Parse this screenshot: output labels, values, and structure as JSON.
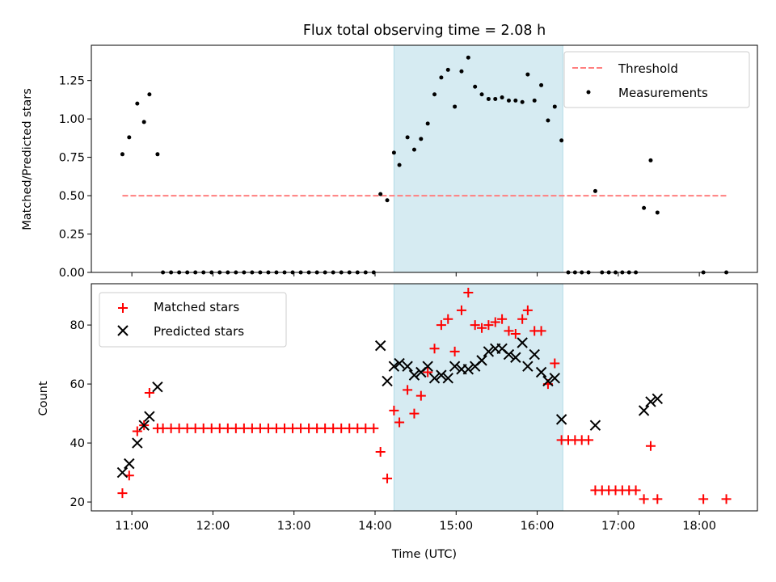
{
  "title": "Flux total observing time = 2.08 h",
  "colors": {
    "threshold": "#ff7f7f",
    "measurement": "#000000",
    "matched": "#ff0000",
    "predicted": "#000000",
    "highlight": "#add8e6"
  },
  "chart_data": [
    {
      "type": "scatter",
      "panel": "top",
      "ylabel": "Matched/Predicted stars",
      "xlabel": "",
      "xlim": [
        "10:30",
        "18:43"
      ],
      "ylim": [
        0,
        1.48
      ],
      "yticks": [
        "0.00",
        "0.25",
        "0.50",
        "0.75",
        "1.00",
        "1.25"
      ],
      "highlight_span": [
        "14:14",
        "16:19"
      ],
      "legend_position": "upper right",
      "series": [
        {
          "name": "Threshold",
          "kind": "dashed-line",
          "x": [
            "10:53",
            "18:20"
          ],
          "y": [
            0.5,
            0.5
          ]
        },
        {
          "name": "Measurements",
          "kind": "point",
          "x": [
            "10:53",
            "10:58",
            "11:04",
            "11:09",
            "11:13",
            "11:19",
            "11:23",
            "11:29",
            "11:35",
            "11:41",
            "11:47",
            "11:53",
            "11:59",
            "12:05",
            "12:11",
            "12:17",
            "12:23",
            "12:29",
            "12:35",
            "12:41",
            "12:47",
            "12:53",
            "12:59",
            "13:05",
            "13:11",
            "13:17",
            "13:23",
            "13:29",
            "13:35",
            "13:41",
            "13:47",
            "13:53",
            "13:59",
            "14:04",
            "14:09",
            "14:14",
            "14:18",
            "14:24",
            "14:29",
            "14:34",
            "14:39",
            "14:44",
            "14:49",
            "14:54",
            "14:59",
            "15:04",
            "15:09",
            "15:14",
            "15:19",
            "15:24",
            "15:29",
            "15:34",
            "15:39",
            "15:44",
            "15:49",
            "15:53",
            "15:58",
            "16:03",
            "16:08",
            "16:13",
            "16:18",
            "16:23",
            "16:28",
            "16:33",
            "16:38",
            "16:43",
            "16:48",
            "16:53",
            "16:58",
            "17:03",
            "17:08",
            "17:13",
            "17:19",
            "17:24",
            "17:29",
            "18:03",
            "18:20"
          ],
          "y": [
            0.77,
            0.88,
            1.1,
            0.98,
            1.16,
            0.77,
            0.0,
            0.0,
            0.0,
            0.0,
            0.0,
            0.0,
            0.0,
            0.0,
            0.0,
            0.0,
            0.0,
            0.0,
            0.0,
            0.0,
            0.0,
            0.0,
            0.0,
            0.0,
            0.0,
            0.0,
            0.0,
            0.0,
            0.0,
            0.0,
            0.0,
            0.0,
            0.0,
            0.51,
            0.47,
            0.78,
            0.7,
            0.88,
            0.8,
            0.87,
            0.97,
            1.16,
            1.27,
            1.32,
            1.08,
            1.31,
            1.4,
            1.21,
            1.16,
            1.13,
            1.13,
            1.14,
            1.12,
            1.12,
            1.11,
            1.29,
            1.12,
            1.22,
            0.99,
            1.08,
            0.86,
            0.0,
            0.0,
            0.0,
            0.0,
            0.53,
            0.0,
            0.0,
            0.0,
            0.0,
            0.0,
            0.0,
            0.42,
            0.73,
            0.39,
            0.0,
            0.0
          ]
        }
      ]
    },
    {
      "type": "scatter",
      "panel": "bottom",
      "ylabel": "Count",
      "xlabel": "Time (UTC)",
      "xlim": [
        "10:30",
        "18:43"
      ],
      "ylim": [
        17,
        94
      ],
      "yticks": [
        "20",
        "40",
        "60",
        "80"
      ],
      "xticks": [
        "11:00",
        "12:00",
        "13:00",
        "14:00",
        "15:00",
        "16:00",
        "17:00",
        "18:00"
      ],
      "highlight_span": [
        "14:14",
        "16:19"
      ],
      "legend_position": "upper left",
      "series": [
        {
          "name": "Matched stars",
          "marker": "plus",
          "x": [
            "10:53",
            "10:58",
            "11:04",
            "11:09",
            "11:13",
            "11:19",
            "11:23",
            "11:29",
            "11:35",
            "11:41",
            "11:47",
            "11:53",
            "11:59",
            "12:05",
            "12:11",
            "12:17",
            "12:23",
            "12:29",
            "12:35",
            "12:41",
            "12:47",
            "12:53",
            "12:59",
            "13:05",
            "13:11",
            "13:17",
            "13:23",
            "13:29",
            "13:35",
            "13:41",
            "13:47",
            "13:53",
            "13:59",
            "14:04",
            "14:09",
            "14:14",
            "14:18",
            "14:24",
            "14:29",
            "14:34",
            "14:39",
            "14:44",
            "14:49",
            "14:54",
            "14:59",
            "15:04",
            "15:09",
            "15:14",
            "15:19",
            "15:24",
            "15:29",
            "15:34",
            "15:39",
            "15:44",
            "15:49",
            "15:53",
            "15:58",
            "16:03",
            "16:08",
            "16:13",
            "16:18",
            "16:23",
            "16:28",
            "16:33",
            "16:38",
            "16:43",
            "16:48",
            "16:53",
            "16:58",
            "17:03",
            "17:08",
            "17:13",
            "17:19",
            "17:24",
            "17:29",
            "18:03",
            "18:20"
          ],
          "y": [
            23,
            29,
            44,
            46,
            57,
            45,
            45,
            45,
            45,
            45,
            45,
            45,
            45,
            45,
            45,
            45,
            45,
            45,
            45,
            45,
            45,
            45,
            45,
            45,
            45,
            45,
            45,
            45,
            45,
            45,
            45,
            45,
            45,
            37,
            28,
            51,
            47,
            58,
            50,
            56,
            64,
            72,
            80,
            82,
            71,
            85,
            91,
            80,
            79,
            80,
            81,
            82,
            78,
            77,
            82,
            85,
            78,
            78,
            60,
            67,
            41,
            41,
            41,
            41,
            41,
            24,
            24,
            24,
            24,
            24,
            24,
            24,
            21,
            39,
            21,
            21,
            21
          ]
        },
        {
          "name": "Predicted stars",
          "marker": "x",
          "x": [
            "10:53",
            "10:58",
            "11:04",
            "11:09",
            "11:13",
            "11:19",
            "14:04",
            "14:09",
            "14:14",
            "14:18",
            "14:24",
            "14:29",
            "14:34",
            "14:39",
            "14:44",
            "14:49",
            "14:54",
            "14:59",
            "15:04",
            "15:09",
            "15:14",
            "15:19",
            "15:24",
            "15:29",
            "15:34",
            "15:39",
            "15:44",
            "15:49",
            "15:53",
            "15:58",
            "16:03",
            "16:08",
            "16:13",
            "16:18",
            "16:43",
            "17:19",
            "17:24",
            "17:29"
          ],
          "y": [
            30,
            33,
            40,
            46,
            49,
            59,
            73,
            61,
            66,
            67,
            66,
            63,
            64,
            66,
            62,
            63,
            62,
            66,
            65,
            65,
            66,
            68,
            71,
            72,
            72,
            70,
            69,
            74,
            66,
            70,
            64,
            61,
            62,
            48,
            46,
            51,
            54,
            55
          ]
        }
      ]
    }
  ]
}
